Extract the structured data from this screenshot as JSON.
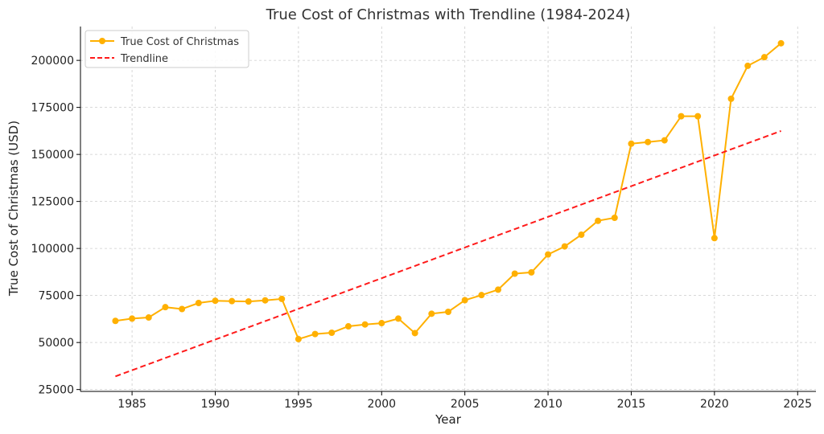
{
  "chart_data": {
    "type": "line",
    "title": "True Cost of Christmas with Trendline (1984-2024)",
    "xlabel": "Year",
    "ylabel": "True Cost of Christmas (USD)",
    "xlim": [
      1981.9,
      2026.1
    ],
    "ylim": [
      24000,
      218000
    ],
    "x_ticks": [
      1985,
      1990,
      1995,
      2000,
      2005,
      2010,
      2015,
      2020,
      2025
    ],
    "y_ticks": [
      25000,
      50000,
      75000,
      100000,
      125000,
      150000,
      175000,
      200000
    ],
    "grid": true,
    "legend_position": "top-left",
    "series": [
      {
        "name": "True Cost of Christmas",
        "style": "line-marker",
        "color": "#ffb000",
        "x": [
          1984,
          1985,
          1986,
          1987,
          1988,
          1989,
          1990,
          1991,
          1992,
          1993,
          1994,
          1995,
          1996,
          1997,
          1998,
          1999,
          2000,
          2001,
          2002,
          2003,
          2004,
          2005,
          2006,
          2007,
          2008,
          2009,
          2010,
          2011,
          2012,
          2013,
          2014,
          2015,
          2016,
          2017,
          2018,
          2019,
          2020,
          2021,
          2022,
          2023,
          2024
        ],
        "y": [
          61500,
          62700,
          63300,
          68800,
          67800,
          71000,
          72200,
          72000,
          71800,
          72400,
          73200,
          51800,
          54500,
          55200,
          58600,
          59600,
          60300,
          62700,
          55000,
          65300,
          66300,
          72500,
          75200,
          78100,
          86600,
          87300,
          96800,
          101100,
          107300,
          114700,
          116300,
          155700,
          156600,
          157500,
          170300,
          170300,
          105500,
          179600,
          197100,
          201700,
          209100
        ]
      },
      {
        "name": "Trendline",
        "style": "dashed",
        "color": "#ff1a1a",
        "x": [
          1984,
          2024
        ],
        "y": [
          32000,
          162500
        ]
      }
    ]
  }
}
